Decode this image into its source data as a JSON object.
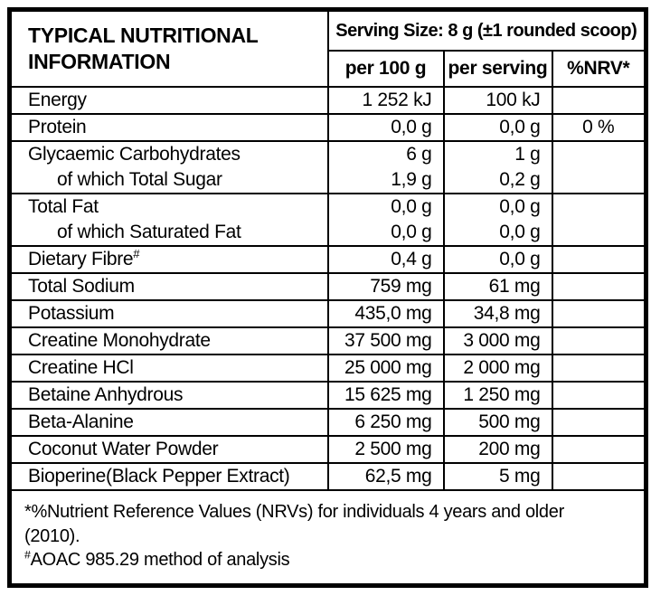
{
  "table": {
    "title": "TYPICAL NUTRITIONAL INFORMATION",
    "serving_size": "Serving Size: 8 g (±1 rounded scoop)",
    "columns": {
      "per_100g": "per 100 g",
      "per_serving": "per serving",
      "nrv": "%NRV*"
    },
    "rows": [
      {
        "label": "Energy",
        "per_100g": "1 252 kJ",
        "per_serving": "100 kJ",
        "nrv": ""
      },
      {
        "label": "Protein",
        "per_100g": "0,0 g",
        "per_serving": "0,0 g",
        "nrv": "0 %"
      },
      {
        "label": "Glycaemic Carbohydrates",
        "per_100g": "6 g",
        "per_serving": "1 g",
        "nrv": ""
      },
      {
        "label": "of which Total Sugar",
        "per_100g": "1,9 g",
        "per_serving": "0,2 g",
        "nrv": ""
      },
      {
        "label": "Total Fat",
        "per_100g": "0,0 g",
        "per_serving": "0,0 g",
        "nrv": ""
      },
      {
        "label": "of which Saturated Fat",
        "per_100g": "0,0 g",
        "per_serving": "0,0 g",
        "nrv": ""
      },
      {
        "label": "Dietary Fibre",
        "label_sup": "#",
        "per_100g": "0,4 g",
        "per_serving": "0,0 g",
        "nrv": ""
      },
      {
        "label": "Total Sodium",
        "per_100g": "759 mg",
        "per_serving": "61 mg",
        "nrv": ""
      },
      {
        "label": "Potassium",
        "per_100g": "435,0 mg",
        "per_serving": "34,8 mg",
        "nrv": ""
      },
      {
        "label": "Creatine Monohydrate",
        "per_100g": "37 500 mg",
        "per_serving": "3 000 mg",
        "nrv": ""
      },
      {
        "label": "Creatine HCl",
        "per_100g": "25 000 mg",
        "per_serving": "2 000 mg",
        "nrv": ""
      },
      {
        "label": "Betaine Anhydrous",
        "per_100g": "15 625 mg",
        "per_serving": "1 250 mg",
        "nrv": ""
      },
      {
        "label": "Beta-Alanine",
        "per_100g": "6 250 mg",
        "per_serving": "500 mg",
        "nrv": ""
      },
      {
        "label": "Coconut Water Powder",
        "per_100g": "2 500 mg",
        "per_serving": "200 mg",
        "nrv": ""
      },
      {
        "label": "Bioperine(Black Pepper Extract)",
        "per_100g": "62,5 mg",
        "per_serving": "5 mg",
        "nrv": ""
      }
    ],
    "footnotes": {
      "nrv_note": "*%Nutrient Reference Values (NRVs) for individuals 4 years and older (2010).",
      "aoac_sup": "#",
      "aoac_note": "AOAC 985.29 method of analysis"
    },
    "colors": {
      "border": "#000000",
      "background": "#ffffff",
      "text": "#000000"
    }
  }
}
